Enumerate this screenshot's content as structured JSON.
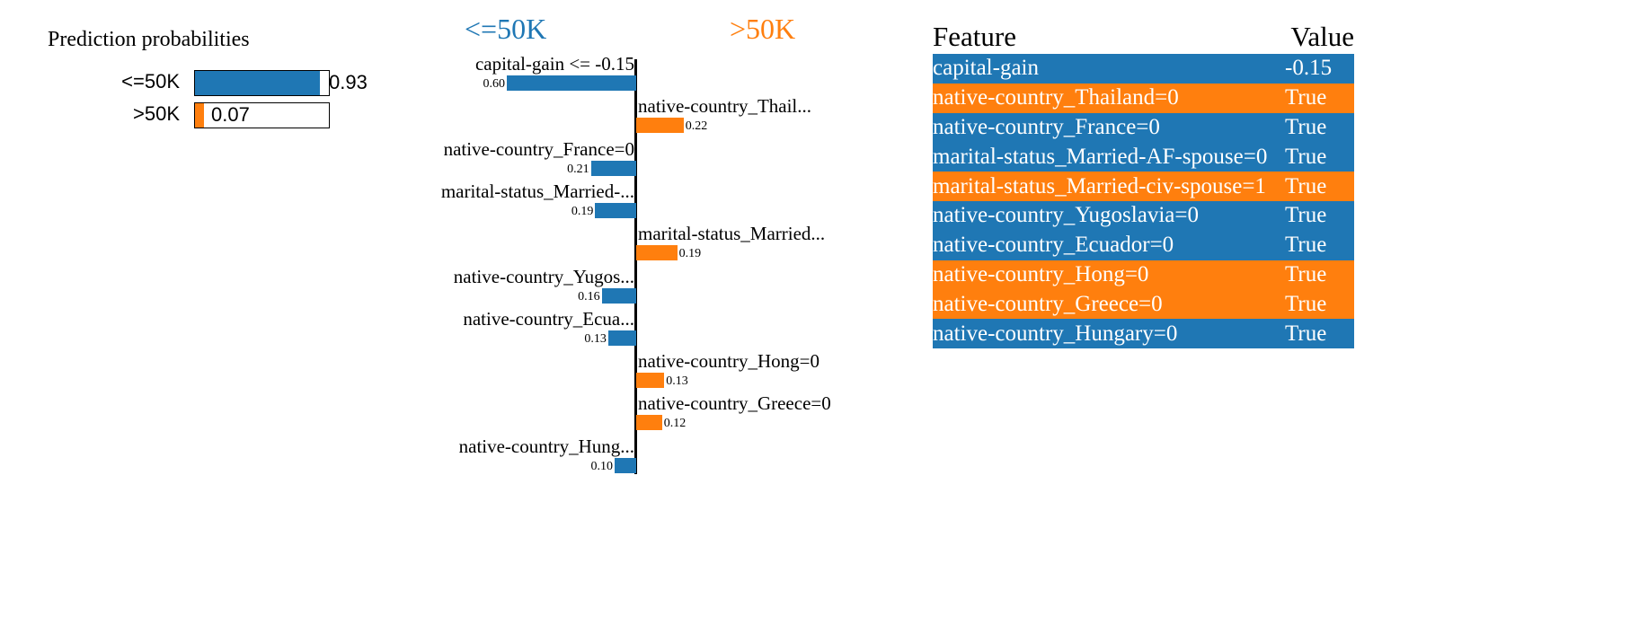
{
  "colors": {
    "neg": "#1f77b4",
    "pos": "#ff7f0e"
  },
  "probabilities": {
    "title": "Prediction probabilities",
    "items": [
      {
        "label": "<=50K",
        "value": 0.93,
        "text": "0.93",
        "color": "#1f77b4"
      },
      {
        "label": ">50K",
        "value": 0.07,
        "text": "0.07",
        "color": "#ff7f0e"
      }
    ]
  },
  "chart_data": {
    "type": "bar",
    "orientation": "horizontal",
    "left_class": "<=50K",
    "right_class": ">50K",
    "bars": [
      {
        "label": "capital-gain <= -0.15",
        "value": -0.6,
        "text": "0.60"
      },
      {
        "label": "native-country_Thail...",
        "value": 0.22,
        "text": "0.22"
      },
      {
        "label": "native-country_France=0",
        "value": -0.21,
        "text": "0.21"
      },
      {
        "label": "marital-status_Married-...",
        "value": -0.19,
        "text": "0.19"
      },
      {
        "label": "marital-status_Married...",
        "value": 0.19,
        "text": "0.19"
      },
      {
        "label": "native-country_Yugos...",
        "value": -0.16,
        "text": "0.16"
      },
      {
        "label": "native-country_Ecua...",
        "value": -0.13,
        "text": "0.13"
      },
      {
        "label": "native-country_Hong=0",
        "value": 0.13,
        "text": "0.13"
      },
      {
        "label": "native-country_Greece=0",
        "value": 0.12,
        "text": "0.12"
      },
      {
        "label": "native-country_Hung...",
        "value": -0.1,
        "text": "0.10"
      }
    ]
  },
  "table": {
    "headers": [
      "Feature",
      "Value"
    ],
    "rows": [
      {
        "feature": "capital-gain",
        "value": "-0.15",
        "side": "neg"
      },
      {
        "feature": "native-country_Thailand=0",
        "value": "True",
        "side": "pos"
      },
      {
        "feature": "native-country_France=0",
        "value": "True",
        "side": "neg"
      },
      {
        "feature": "marital-status_Married-AF-spouse=0",
        "value": "True",
        "side": "neg"
      },
      {
        "feature": "marital-status_Married-civ-spouse=1",
        "value": "True",
        "side": "pos"
      },
      {
        "feature": "native-country_Yugoslavia=0",
        "value": "True",
        "side": "neg"
      },
      {
        "feature": "native-country_Ecuador=0",
        "value": "True",
        "side": "neg"
      },
      {
        "feature": "native-country_Hong=0",
        "value": "True",
        "side": "pos"
      },
      {
        "feature": "native-country_Greece=0",
        "value": "True",
        "side": "pos"
      },
      {
        "feature": "native-country_Hungary=0",
        "value": "True",
        "side": "neg"
      }
    ]
  }
}
